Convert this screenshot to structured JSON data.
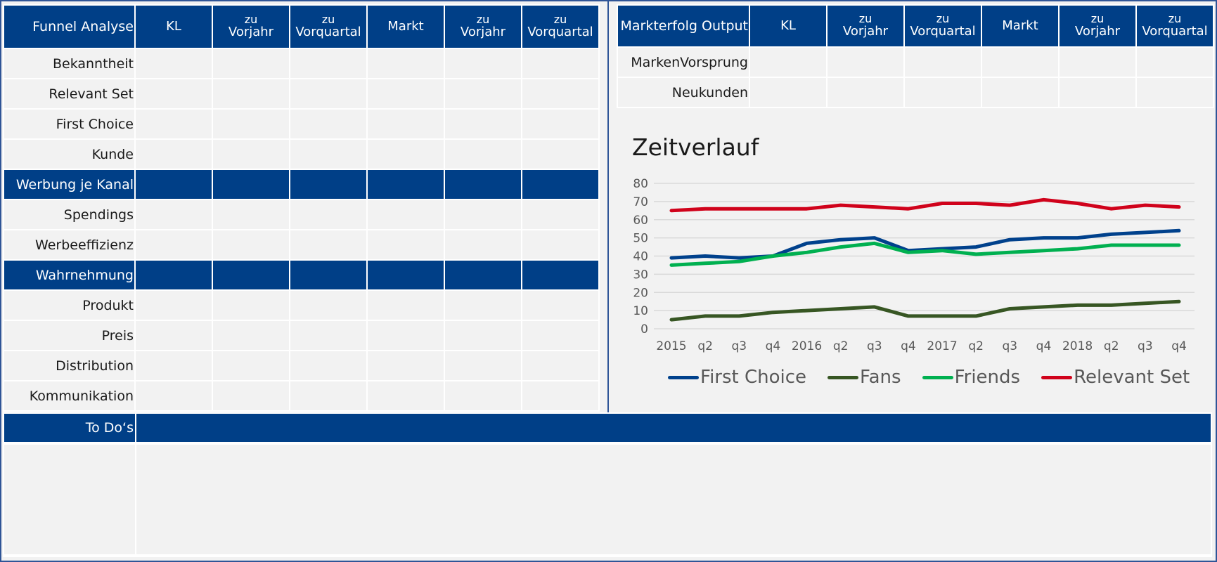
{
  "funnel_table": {
    "header": [
      "Funnel Analyse",
      "KL",
      [
        "zu",
        "Vorjahr"
      ],
      [
        "zu",
        "Vorquartal"
      ],
      "Markt",
      [
        "zu",
        "Vorjahr"
      ],
      [
        "zu",
        "Vorquartal"
      ]
    ],
    "header_label": "Funnel Analyse",
    "col_kl": "KL",
    "col_zu": "zu",
    "col_vorjahr": "Vorjahr",
    "col_vorquartal": "Vorquartal",
    "col_markt": "Markt",
    "rows": [
      {
        "label": "Bekanntheit",
        "section": false
      },
      {
        "label": "Relevant Set",
        "section": false
      },
      {
        "label": "First Choice",
        "section": false
      },
      {
        "label": "Kunde",
        "section": false
      },
      {
        "label": "Werbung je Kanal",
        "section": true
      },
      {
        "label": "Spendings",
        "section": false
      },
      {
        "label": "Werbeeffizienz",
        "section": false
      },
      {
        "label": "Wahrnehmung",
        "section": true
      },
      {
        "label": "Produkt",
        "section": false
      },
      {
        "label": "Preis",
        "section": false
      },
      {
        "label": "Distribution",
        "section": false
      },
      {
        "label": "Kommunikation",
        "section": false
      }
    ]
  },
  "output_table": {
    "header_label": "Markterfolg Output",
    "col_kl": "KL",
    "col_zu": "zu",
    "col_vorjahr": "Vorjahr",
    "col_vorquartal": "Vorquartal",
    "col_markt": "Markt",
    "rows": [
      {
        "label": "MarkenVorsprung"
      },
      {
        "label": "Neukunden"
      }
    ]
  },
  "todo": {
    "label": "To Do‘s"
  },
  "colors": {
    "header_blue": "#003f87",
    "frame_blue": "#2f5597"
  },
  "chart_data": {
    "type": "line",
    "title": "Zeitverlauf",
    "xlabel": "",
    "ylabel": "",
    "categories": [
      "2015",
      "q2",
      "q3",
      "q4",
      "2016",
      "q2",
      "q3",
      "q4",
      "2017",
      "q2",
      "q3",
      "q4",
      "2018",
      "q2",
      "q3",
      "q4"
    ],
    "ylim": [
      0,
      80
    ],
    "yticks": [
      0,
      10,
      20,
      30,
      40,
      50,
      60,
      70,
      80
    ],
    "grid": true,
    "legend_position": "bottom",
    "series": [
      {
        "name": "First Choice",
        "color": "#00418c",
        "values": [
          39,
          40,
          39,
          40,
          47,
          49,
          50,
          43,
          44,
          45,
          49,
          50,
          50,
          52,
          53,
          54
        ]
      },
      {
        "name": "Fans",
        "color": "#375623",
        "values": [
          5,
          7,
          7,
          9,
          10,
          11,
          12,
          7,
          7,
          7,
          11,
          12,
          13,
          13,
          14,
          15
        ]
      },
      {
        "name": "Friends",
        "color": "#00b050",
        "values": [
          35,
          36,
          37,
          40,
          42,
          45,
          47,
          42,
          43,
          41,
          42,
          43,
          44,
          46,
          46,
          46
        ]
      },
      {
        "name": "Relevant Set",
        "color": "#d0021b",
        "values": [
          65,
          66,
          66,
          66,
          66,
          68,
          67,
          66,
          69,
          69,
          68,
          71,
          69,
          66,
          68,
          67
        ]
      }
    ]
  }
}
